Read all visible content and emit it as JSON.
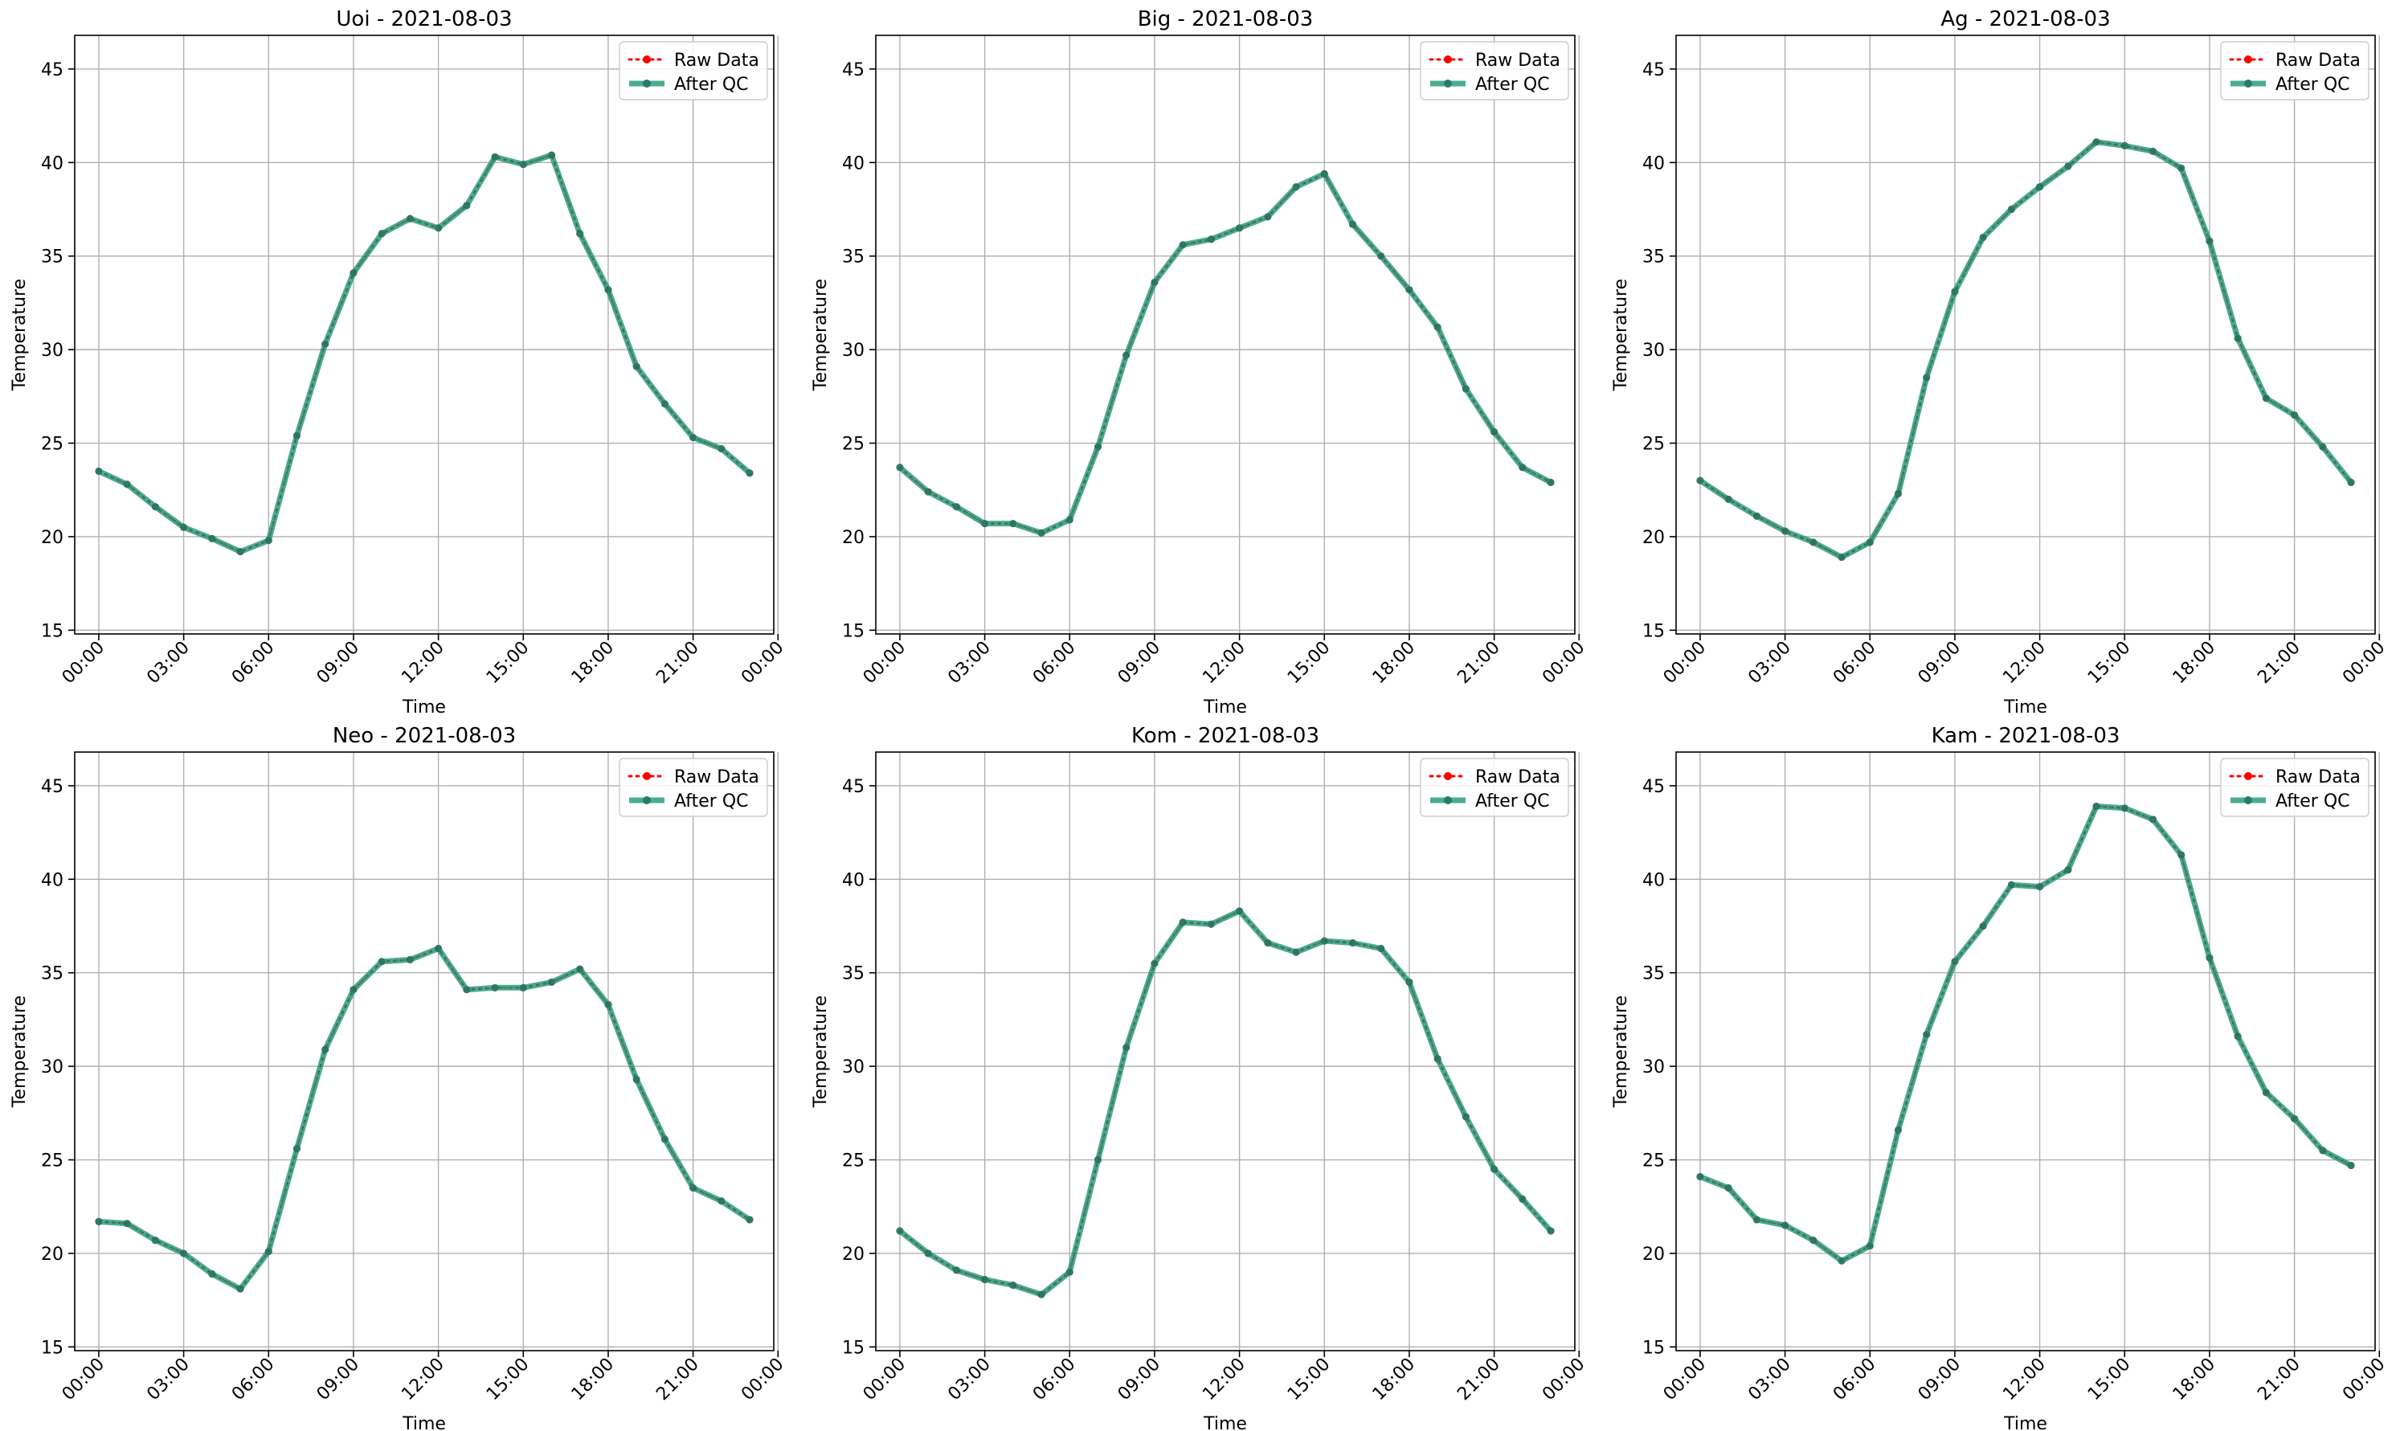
{
  "figure": {
    "legend_labels": {
      "raw": "Raw Data",
      "qc": "After QC"
    },
    "colors": {
      "raw": "#ff0000",
      "qc": "#2a9d7f",
      "qc_marker": "#2b7a68",
      "grid": "#b0b0b0"
    }
  },
  "chart_data": [
    {
      "type": "line",
      "title": "Uoi - 2021-08-03",
      "xlabel": "Time",
      "ylabel": "Temperature",
      "x_ticks": [
        "00:00",
        "03:00",
        "06:00",
        "09:00",
        "12:00",
        "15:00",
        "18:00",
        "21:00",
        "00:00"
      ],
      "y_ticks": [
        15,
        20,
        25,
        30,
        35,
        40,
        45
      ],
      "ylim": [
        14.8,
        46.8
      ],
      "xlim": [
        -0.85,
        23.85
      ],
      "grid": true,
      "legend_position": "top-right",
      "x": [
        0,
        1,
        2,
        3,
        4,
        5,
        6,
        7,
        8,
        9,
        10,
        11,
        12,
        13,
        14,
        15,
        16,
        17,
        18,
        19,
        20,
        21,
        22,
        23
      ],
      "series": [
        {
          "name": "Raw Data",
          "values": [
            23.5,
            22.8,
            21.6,
            20.5,
            19.9,
            19.2,
            19.8,
            25.4,
            30.3,
            34.1,
            36.2,
            37.0,
            36.5,
            37.7,
            40.3,
            39.9,
            40.4,
            36.2,
            33.2,
            29.1,
            27.1,
            25.3,
            24.7,
            23.4
          ]
        },
        {
          "name": "After QC",
          "values": [
            23.5,
            22.8,
            21.6,
            20.5,
            19.9,
            19.2,
            19.8,
            25.4,
            30.3,
            34.1,
            36.2,
            37.0,
            36.5,
            37.7,
            40.3,
            39.9,
            40.4,
            36.2,
            33.2,
            29.1,
            27.1,
            25.3,
            24.7,
            23.4
          ]
        }
      ]
    },
    {
      "type": "line",
      "title": "Big - 2021-08-03",
      "xlabel": "Time",
      "ylabel": "Temperature",
      "x_ticks": [
        "00:00",
        "03:00",
        "06:00",
        "09:00",
        "12:00",
        "15:00",
        "18:00",
        "21:00",
        "00:00"
      ],
      "y_ticks": [
        15,
        20,
        25,
        30,
        35,
        40,
        45
      ],
      "ylim": [
        14.8,
        46.8
      ],
      "xlim": [
        -0.85,
        23.85
      ],
      "grid": true,
      "legend_position": "top-right",
      "x": [
        0,
        1,
        2,
        3,
        4,
        5,
        6,
        7,
        8,
        9,
        10,
        11,
        12,
        13,
        14,
        15,
        16,
        17,
        18,
        19,
        20,
        21,
        22,
        23
      ],
      "series": [
        {
          "name": "Raw Data",
          "values": [
            23.7,
            22.4,
            21.6,
            20.7,
            20.7,
            20.2,
            20.9,
            24.8,
            29.7,
            33.6,
            35.6,
            35.9,
            36.5,
            37.1,
            38.7,
            39.4,
            36.7,
            35.0,
            33.2,
            31.2,
            27.9,
            25.6,
            23.7,
            22.9
          ]
        },
        {
          "name": "After QC",
          "values": [
            23.7,
            22.4,
            21.6,
            20.7,
            20.7,
            20.2,
            20.9,
            24.8,
            29.7,
            33.6,
            35.6,
            35.9,
            36.5,
            37.1,
            38.7,
            39.4,
            36.7,
            35.0,
            33.2,
            31.2,
            27.9,
            25.6,
            23.7,
            22.9
          ]
        }
      ]
    },
    {
      "type": "line",
      "title": "Ag - 2021-08-03",
      "xlabel": "Time",
      "ylabel": "Temperature",
      "x_ticks": [
        "00:00",
        "03:00",
        "06:00",
        "09:00",
        "12:00",
        "15:00",
        "18:00",
        "21:00",
        "00:00"
      ],
      "y_ticks": [
        15,
        20,
        25,
        30,
        35,
        40,
        45
      ],
      "ylim": [
        14.8,
        46.8
      ],
      "xlim": [
        -0.85,
        23.85
      ],
      "grid": true,
      "legend_position": "top-right",
      "x": [
        0,
        1,
        2,
        3,
        4,
        5,
        6,
        7,
        8,
        9,
        10,
        11,
        12,
        13,
        14,
        15,
        16,
        17,
        18,
        19,
        20,
        21,
        22,
        23
      ],
      "series": [
        {
          "name": "Raw Data",
          "values": [
            23.0,
            22.0,
            21.1,
            20.3,
            19.7,
            18.9,
            19.7,
            22.3,
            28.5,
            33.1,
            36.0,
            37.5,
            38.7,
            39.8,
            41.1,
            40.9,
            40.6,
            39.7,
            35.8,
            30.6,
            27.4,
            26.5,
            24.8,
            22.9
          ]
        },
        {
          "name": "After QC",
          "values": [
            23.0,
            22.0,
            21.1,
            20.3,
            19.7,
            18.9,
            19.7,
            22.3,
            28.5,
            33.1,
            36.0,
            37.5,
            38.7,
            39.8,
            41.1,
            40.9,
            40.6,
            39.7,
            35.8,
            30.6,
            27.4,
            26.5,
            24.8,
            22.9
          ]
        }
      ]
    },
    {
      "type": "line",
      "title": "Neo - 2021-08-03",
      "xlabel": "Time",
      "ylabel": "Temperature",
      "x_ticks": [
        "00:00",
        "03:00",
        "06:00",
        "09:00",
        "12:00",
        "15:00",
        "18:00",
        "21:00",
        "00:00"
      ],
      "y_ticks": [
        15,
        20,
        25,
        30,
        35,
        40,
        45
      ],
      "ylim": [
        14.8,
        46.8
      ],
      "xlim": [
        -0.85,
        23.85
      ],
      "grid": true,
      "legend_position": "top-right",
      "x": [
        0,
        1,
        2,
        3,
        4,
        5,
        6,
        7,
        8,
        9,
        10,
        11,
        12,
        13,
        14,
        15,
        16,
        17,
        18,
        19,
        20,
        21,
        22,
        23
      ],
      "series": [
        {
          "name": "Raw Data",
          "values": [
            21.7,
            21.6,
            20.7,
            20.0,
            18.9,
            18.1,
            20.1,
            25.6,
            30.9,
            34.1,
            35.6,
            35.7,
            36.3,
            34.1,
            34.2,
            34.2,
            34.5,
            35.2,
            33.3,
            29.3,
            26.1,
            23.5,
            22.8,
            21.8
          ]
        },
        {
          "name": "After QC",
          "values": [
            21.7,
            21.6,
            20.7,
            20.0,
            18.9,
            18.1,
            20.1,
            25.6,
            30.9,
            34.1,
            35.6,
            35.7,
            36.3,
            34.1,
            34.2,
            34.2,
            34.5,
            35.2,
            33.3,
            29.3,
            26.1,
            23.5,
            22.8,
            21.8
          ]
        }
      ]
    },
    {
      "type": "line",
      "title": "Kom - 2021-08-03",
      "xlabel": "Time",
      "ylabel": "Temperature",
      "x_ticks": [
        "00:00",
        "03:00",
        "06:00",
        "09:00",
        "12:00",
        "15:00",
        "18:00",
        "21:00",
        "00:00"
      ],
      "y_ticks": [
        15,
        20,
        25,
        30,
        35,
        40,
        45
      ],
      "ylim": [
        14.8,
        46.8
      ],
      "xlim": [
        -0.85,
        23.85
      ],
      "grid": true,
      "legend_position": "top-right",
      "x": [
        0,
        1,
        2,
        3,
        4,
        5,
        6,
        7,
        8,
        9,
        10,
        11,
        12,
        13,
        14,
        15,
        16,
        17,
        18,
        19,
        20,
        21,
        22,
        23
      ],
      "series": [
        {
          "name": "Raw Data",
          "values": [
            21.2,
            20.0,
            19.1,
            18.6,
            18.3,
            17.8,
            19.0,
            25.0,
            31.0,
            35.5,
            37.7,
            37.6,
            38.3,
            36.6,
            36.1,
            36.7,
            36.6,
            36.3,
            34.5,
            30.4,
            27.3,
            24.5,
            22.9,
            21.2
          ]
        },
        {
          "name": "After QC",
          "values": [
            21.2,
            20.0,
            19.1,
            18.6,
            18.3,
            17.8,
            19.0,
            25.0,
            31.0,
            35.5,
            37.7,
            37.6,
            38.3,
            36.6,
            36.1,
            36.7,
            36.6,
            36.3,
            34.5,
            30.4,
            27.3,
            24.5,
            22.9,
            21.2
          ]
        }
      ]
    },
    {
      "type": "line",
      "title": "Kam - 2021-08-03",
      "xlabel": "Time",
      "ylabel": "Temperature",
      "x_ticks": [
        "00:00",
        "03:00",
        "06:00",
        "09:00",
        "12:00",
        "15:00",
        "18:00",
        "21:00",
        "00:00"
      ],
      "y_ticks": [
        15,
        20,
        25,
        30,
        35,
        40,
        45
      ],
      "ylim": [
        14.8,
        46.8
      ],
      "xlim": [
        -0.85,
        23.85
      ],
      "grid": true,
      "legend_position": "top-right",
      "x": [
        0,
        1,
        2,
        3,
        4,
        5,
        6,
        7,
        8,
        9,
        10,
        11,
        12,
        13,
        14,
        15,
        16,
        17,
        18,
        19,
        20,
        21,
        22,
        23
      ],
      "series": [
        {
          "name": "Raw Data",
          "values": [
            24.1,
            23.5,
            21.8,
            21.5,
            20.7,
            19.6,
            20.4,
            26.6,
            31.7,
            35.6,
            37.5,
            39.7,
            39.6,
            40.5,
            43.9,
            43.8,
            43.2,
            41.3,
            35.8,
            31.6,
            28.6,
            27.2,
            25.5,
            24.7
          ]
        },
        {
          "name": "After QC",
          "values": [
            24.1,
            23.5,
            21.8,
            21.5,
            20.7,
            19.6,
            20.4,
            26.6,
            31.7,
            35.6,
            37.5,
            39.7,
            39.6,
            40.5,
            43.9,
            43.8,
            43.2,
            41.3,
            35.8,
            31.6,
            28.6,
            27.2,
            25.5,
            24.7
          ]
        }
      ]
    }
  ]
}
